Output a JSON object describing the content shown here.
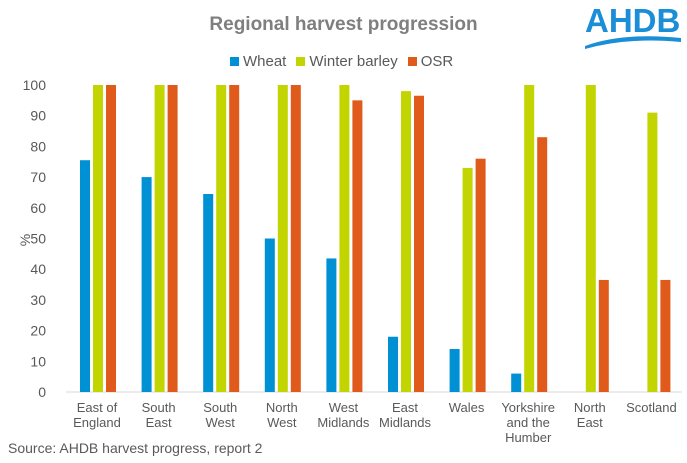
{
  "chart_data": {
    "type": "bar",
    "title": "Regional harvest progression",
    "ylabel": "%",
    "xlabel": "",
    "ylim": [
      0,
      100
    ],
    "yticks": [
      0,
      10,
      20,
      30,
      40,
      50,
      60,
      70,
      80,
      90,
      100
    ],
    "categories": [
      [
        "East of",
        "England"
      ],
      [
        "South",
        "East"
      ],
      [
        "South",
        "West"
      ],
      [
        "North",
        "West"
      ],
      [
        "West",
        "Midlands"
      ],
      [
        "East",
        "Midlands"
      ],
      [
        "Wales"
      ],
      [
        "Yorkshire",
        "and the",
        "Humber"
      ],
      [
        "North",
        "East"
      ],
      [
        "Scotland"
      ]
    ],
    "series": [
      {
        "name": "Wheat",
        "color": "#0090d4",
        "values": [
          75.5,
          70,
          64.5,
          50,
          43.5,
          18,
          14,
          6,
          0,
          0
        ]
      },
      {
        "name": "Winter barley",
        "color": "#c3d500",
        "values": [
          100,
          100,
          100,
          100,
          100,
          98,
          73,
          100,
          100,
          91
        ]
      },
      {
        "name": "OSR",
        "color": "#e05a1b",
        "values": [
          100,
          100,
          100,
          100,
          95,
          96.5,
          76,
          83,
          36.5,
          36.5
        ]
      }
    ],
    "legend_position": "top",
    "grid": false
  },
  "logo": "AHDB",
  "source": "Source: AHDB harvest progress, report 2"
}
